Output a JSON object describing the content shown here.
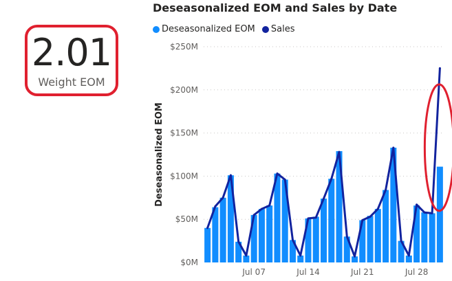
{
  "kpi": {
    "value": "2.01",
    "label": "Weight EOM"
  },
  "chart_data": {
    "type": "bar",
    "title": "Deseasonalized EOM and Sales by Date",
    "xlabel": "",
    "ylabel": "Deseasonalized EOM",
    "ylim": [
      0,
      250
    ],
    "yticks": [
      0,
      50,
      100,
      150,
      200,
      250
    ],
    "ytick_labels": [
      "$0M",
      "$50M",
      "$100M",
      "$150M",
      "$200M",
      "$250M"
    ],
    "grid": true,
    "legend_position": "top-left",
    "categories": [
      "Jul 01",
      "Jul 02",
      "Jul 03",
      "Jul 04",
      "Jul 05",
      "Jul 06",
      "Jul 07",
      "Jul 08",
      "Jul 09",
      "Jul 10",
      "Jul 11",
      "Jul 12",
      "Jul 13",
      "Jul 14",
      "Jul 15",
      "Jul 16",
      "Jul 17",
      "Jul 18",
      "Jul 19",
      "Jul 20",
      "Jul 21",
      "Jul 22",
      "Jul 23",
      "Jul 24",
      "Jul 25",
      "Jul 26",
      "Jul 27",
      "Jul 28",
      "Jul 29",
      "Jul 30",
      "Jul 31"
    ],
    "xtick_labels": [
      {
        "category": "Jul 07",
        "label": "Jul 07"
      },
      {
        "category": "Jul 14",
        "label": "Jul 14"
      },
      {
        "category": "Jul 21",
        "label": "Jul 21"
      },
      {
        "category": "Jul 28",
        "label": "Jul 28"
      }
    ],
    "series": [
      {
        "name": "Deseasonalized EOM",
        "type": "bar",
        "color": "#118dff",
        "values": [
          40,
          64,
          75,
          101,
          24,
          8,
          55,
          62,
          66,
          103,
          96,
          26,
          8,
          51,
          53,
          74,
          97,
          129,
          30,
          7,
          49,
          54,
          62,
          84,
          133,
          25,
          8,
          66,
          58,
          57,
          111
        ]
      },
      {
        "name": "Sales",
        "type": "line",
        "color": "#12239e",
        "values": [
          40,
          65,
          75,
          101,
          24,
          8,
          55,
          62,
          66,
          103,
          96,
          26,
          8,
          51,
          52,
          74,
          97,
          128,
          30,
          7,
          49,
          53,
          62,
          84,
          133,
          25,
          8,
          67,
          58,
          57,
          225
        ]
      }
    ]
  },
  "annotations": {
    "highlight_color": "#e0202f"
  }
}
